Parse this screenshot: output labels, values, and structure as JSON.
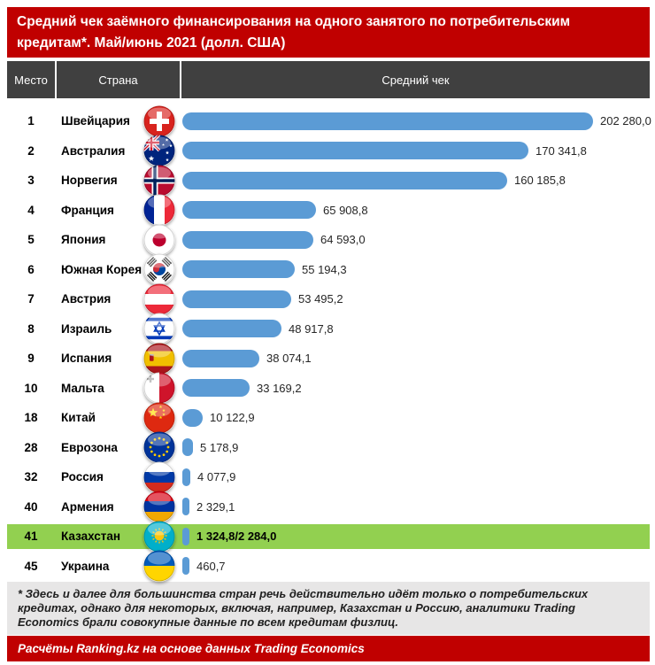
{
  "title": {
    "line1": "Средний чек заёмного финансирования на одного занятого по потребительским кредитам*.",
    "line2": "Май/июнь 2021 (долл. США)"
  },
  "table": {
    "columns": [
      "Место",
      "Страна",
      "Средний чек"
    ]
  },
  "rows": [
    {
      "rank": "1",
      "country": "Швейцария",
      "flag": "ch",
      "value": 202280.0,
      "value_label": "202 280,0",
      "highlight": false
    },
    {
      "rank": "2",
      "country": "Австралия",
      "flag": "au",
      "value": 170341.8,
      "value_label": "170 341,8",
      "highlight": false
    },
    {
      "rank": "3",
      "country": "Норвегия",
      "flag": "no",
      "value": 160185.8,
      "value_label": "160 185,8",
      "highlight": false
    },
    {
      "rank": "4",
      "country": "Франция",
      "flag": "fr",
      "value": 65908.8,
      "value_label": "65 908,8",
      "highlight": false
    },
    {
      "rank": "5",
      "country": "Япония",
      "flag": "jp",
      "value": 64593.0,
      "value_label": "64 593,0",
      "highlight": false
    },
    {
      "rank": "6",
      "country": "Южная Корея",
      "flag": "kr",
      "value": 55194.3,
      "value_label": "55 194,3",
      "highlight": false
    },
    {
      "rank": "7",
      "country": "Австрия",
      "flag": "at",
      "value": 53495.2,
      "value_label": "53 495,2",
      "highlight": false
    },
    {
      "rank": "8",
      "country": "Израиль",
      "flag": "il",
      "value": 48917.8,
      "value_label": "48 917,8",
      "highlight": false
    },
    {
      "rank": "9",
      "country": "Испания",
      "flag": "es",
      "value": 38074.1,
      "value_label": "38 074,1",
      "highlight": false
    },
    {
      "rank": "10",
      "country": "Мальта",
      "flag": "mt",
      "value": 33169.2,
      "value_label": "33 169,2",
      "highlight": false
    },
    {
      "rank": "18",
      "country": "Китай",
      "flag": "cn",
      "value": 10122.9,
      "value_label": "10 122,9",
      "highlight": false
    },
    {
      "rank": "28",
      "country": "Еврозона",
      "flag": "eu",
      "value": 5178.9,
      "value_label": "5 178,9",
      "highlight": false
    },
    {
      "rank": "32",
      "country": "Россия",
      "flag": "ru",
      "value": 4077.9,
      "value_label": "4 077,9",
      "highlight": false
    },
    {
      "rank": "40",
      "country": "Армения",
      "flag": "am",
      "value": 2329.1,
      "value_label": "2 329,1",
      "highlight": false
    },
    {
      "rank": "41",
      "country": "Казахстан",
      "flag": "kz",
      "value": 1324.8,
      "value_label": "1 324,8/2 284,0",
      "highlight": true
    },
    {
      "rank": "45",
      "country": "Украина",
      "flag": "ua",
      "value": 460.7,
      "value_label": "460,7",
      "highlight": false
    }
  ],
  "footnote": "* Здесь и далее для большинства стран речь действительно идёт только о потребительских кредитах, однако для некоторых, включая, например, Казахстан и Россию, аналитики Trading Economics брали совокупные данные по всем кредитам физлиц.",
  "source": "Расчёты Ranking.kz на основе данных Trading Economics",
  "colors": {
    "header_red": "#c00000",
    "table_header_gray": "#404040",
    "bar_blue": "#5b9bd5",
    "highlight_green": "#92d050",
    "footnote_bg": "#e7e6e6"
  },
  "chart_data": {
    "type": "bar",
    "orientation": "horizontal",
    "title": "Средний чек заёмного финансирования на одного занятого по потребительским кредитам*. Май/июнь 2021 (долл. США)",
    "categories": [
      "Швейцария",
      "Австралия",
      "Норвегия",
      "Франция",
      "Япония",
      "Южная Корея",
      "Австрия",
      "Израиль",
      "Испания",
      "Мальта",
      "Китай",
      "Еврозона",
      "Россия",
      "Армения",
      "Казахстан",
      "Украина"
    ],
    "ranks": [
      1,
      2,
      3,
      4,
      5,
      6,
      7,
      8,
      9,
      10,
      18,
      28,
      32,
      40,
      41,
      45
    ],
    "values": [
      202280.0,
      170341.8,
      160185.8,
      65908.8,
      64593.0,
      55194.3,
      53495.2,
      48917.8,
      38074.1,
      33169.2,
      10122.9,
      5178.9,
      4077.9,
      2329.1,
      1324.8,
      460.7
    ],
    "kazakhstan_secondary_value": 2284.0,
    "units": "долл. США",
    "xlim": [
      0,
      210000
    ],
    "highlighted_category": "Казахстан",
    "legend": "none",
    "grid": false
  }
}
